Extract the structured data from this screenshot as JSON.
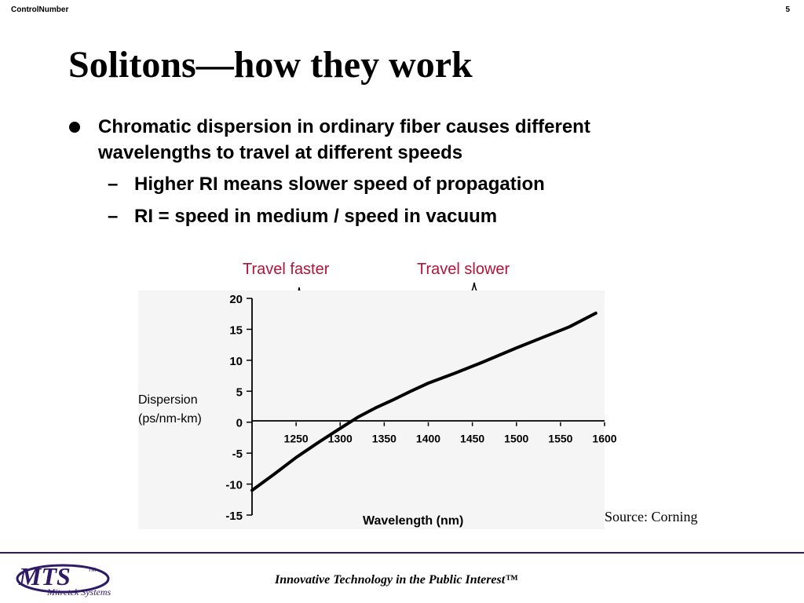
{
  "header": {
    "control": "ControlNumber",
    "page": "5"
  },
  "title": "Solitons—how they work",
  "bullets": [
    {
      "text": "Chromatic dispersion in ordinary fiber causes different wavelengths to travel at different speeds",
      "sub": [
        "Higher RI means slower speed of propagation",
        "RI = speed in medium / speed in vacuum"
      ]
    }
  ],
  "annotations": {
    "faster": "Travel faster",
    "slower": "Travel slower"
  },
  "chart_data": {
    "type": "line",
    "title": "",
    "xlabel": "Wavelength (nm)",
    "ylabel": "Dispersion (ps/nm-km)",
    "xlim": [
      1200,
      1600
    ],
    "ylim": [
      -15,
      20
    ],
    "xticks": [
      1250,
      1300,
      1350,
      1400,
      1450,
      1500,
      1550,
      1600
    ],
    "yticks": [
      20,
      15,
      10,
      5,
      0,
      -5,
      -10,
      -15
    ],
    "series": [
      {
        "x": [
          1200,
          1225,
          1250,
          1275,
          1300,
          1320,
          1340,
          1360,
          1380,
          1400,
          1430,
          1460,
          1500,
          1530,
          1560,
          1590
        ],
        "y": [
          -11,
          -8.4,
          -5.7,
          -3.3,
          -1,
          0.8,
          2.3,
          3.6,
          5,
          6.3,
          7.9,
          9.6,
          12,
          13.7,
          15.4,
          17.6
        ]
      }
    ],
    "grid": false,
    "color": "#000000"
  },
  "source": "Source: Corning",
  "footer": {
    "logo_text": "MTS",
    "logo_tm": "TM",
    "logo_sub": "Mitretek Systems",
    "tagline": "Innovative Technology in the Public Interest™",
    "brand_color": "#2e1a66"
  }
}
